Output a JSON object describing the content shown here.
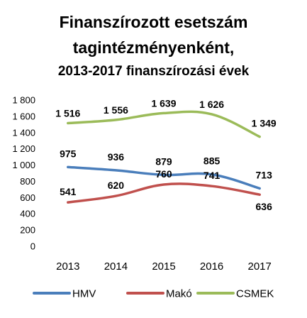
{
  "chart_data": {
    "type": "line",
    "title_lines": [
      "Finanszírozott esetszám",
      "tagintézményenként,",
      "2013-2017 finanszírozási évek"
    ],
    "xlabel": "",
    "ylabel": "",
    "categories": [
      "2013",
      "2014",
      "2015",
      "2016",
      "2017"
    ],
    "ylim": [
      0,
      1800
    ],
    "yticks": [
      0,
      200,
      400,
      600,
      800,
      1000,
      1200,
      1400,
      1600,
      1800
    ],
    "ytick_labels": [
      "0",
      "200",
      "400",
      "600",
      "800",
      "1 000",
      "1 200",
      "1 400",
      "1 600",
      "1 800"
    ],
    "grid": false,
    "legend": "bottom",
    "series": [
      {
        "name": "HMV",
        "color": "#4a7ebb",
        "values": [
          975,
          936,
          879,
          885,
          713
        ],
        "labels": [
          "975",
          "936",
          "879",
          "885",
          "713"
        ]
      },
      {
        "name": "Makó",
        "color": "#c0504d",
        "values": [
          541,
          620,
          760,
          741,
          636
        ],
        "labels": [
          "541",
          "620",
          "760",
          "741",
          "636"
        ]
      },
      {
        "name": "CSMEK",
        "color": "#9bbb59",
        "values": [
          1516,
          1556,
          1639,
          1626,
          1349
        ],
        "labels": [
          "1 516",
          "1 556",
          "1 639",
          "1 626",
          "1 349"
        ]
      }
    ]
  }
}
